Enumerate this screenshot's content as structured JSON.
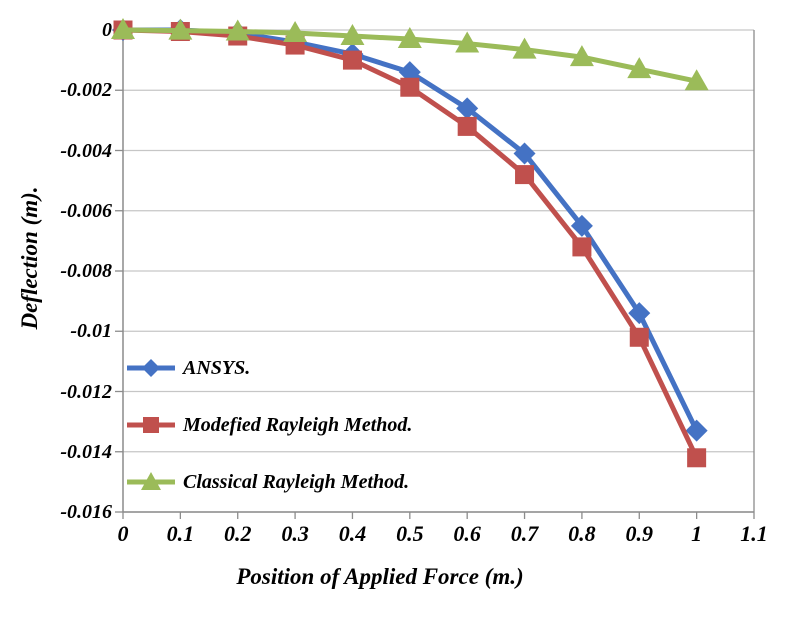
{
  "chart_data": {
    "type": "line",
    "title": "",
    "xlabel": "Position of Applied Force (m.)",
    "ylabel": "Deflection (m).",
    "x": [
      0,
      0.1,
      0.2,
      0.3,
      0.4,
      0.5,
      0.6,
      0.7,
      0.8,
      0.9,
      1.0
    ],
    "series": [
      {
        "name": "ANSYS.",
        "marker": "diamond",
        "color": "#4472C4",
        "values": [
          0,
          0,
          -0.0001,
          -0.0004,
          -0.0008,
          -0.0014,
          -0.0026,
          -0.0041,
          -0.0065,
          -0.0094,
          -0.0133
        ]
      },
      {
        "name": "Modefied Rayleigh Method.",
        "marker": "square",
        "color": "#C0504D",
        "values": [
          0,
          -5e-05,
          -0.0002,
          -0.0005,
          -0.001,
          -0.0019,
          -0.0032,
          -0.0048,
          -0.0072,
          -0.0102,
          -0.0142
        ]
      },
      {
        "name": "Classical Rayleigh Method.",
        "marker": "triangle",
        "color": "#9BBB59",
        "values": [
          0,
          -2e-05,
          -5e-05,
          -0.0001,
          -0.0002,
          -0.0003,
          -0.00045,
          -0.00065,
          -0.0009,
          -0.0013,
          -0.0017
        ]
      }
    ],
    "xlim": [
      0,
      1.1
    ],
    "ylim": [
      -0.016,
      0
    ],
    "xticks": [
      0,
      0.1,
      0.2,
      0.3,
      0.4,
      0.5,
      0.6,
      0.7,
      0.8,
      0.9,
      1.0,
      1.1
    ],
    "xtick_labels": [
      "0",
      "0.1",
      "0.2",
      "0.3",
      "0.4",
      "0.5",
      "0.6",
      "0.7",
      "0.8",
      "0.9",
      "1",
      "1.1"
    ],
    "yticks": [
      0,
      -0.002,
      -0.004,
      -0.006,
      -0.008,
      -0.01,
      -0.012,
      -0.014,
      -0.016
    ],
    "ytick_labels": [
      "0",
      "-0.002",
      "-0.004",
      "-0.006",
      "-0.008",
      "-0.01",
      "-0.012",
      "-0.014",
      "-0.016"
    ],
    "grid": true,
    "legend_position": "inside-left",
    "grid_color": "#C6C6C6",
    "axis_color": "#8C8C8C",
    "background": "#FFFFFF"
  }
}
